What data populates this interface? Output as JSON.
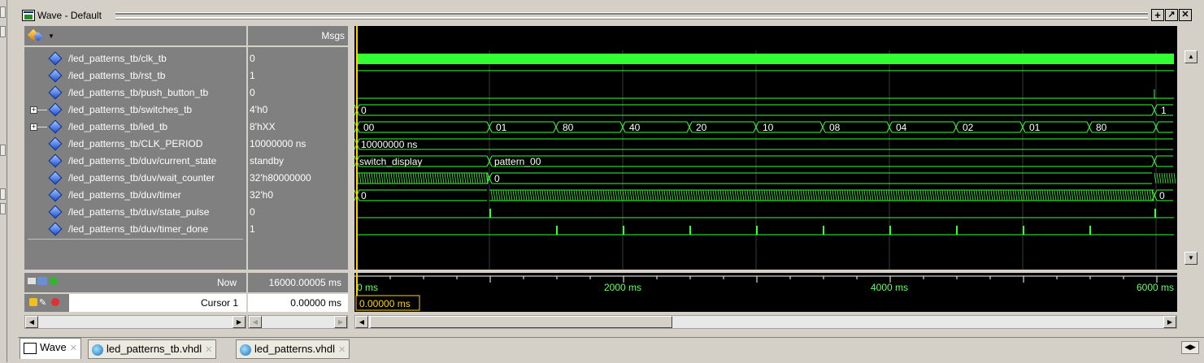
{
  "window": {
    "title": "Wave - Default",
    "buttons": [
      "+",
      "↗",
      "✕"
    ]
  },
  "header": {
    "msgs_label": "Msgs"
  },
  "signals": [
    {
      "name": "/led_patterns_tb/clk_tb",
      "value": "0",
      "expandable": false
    },
    {
      "name": "/led_patterns_tb/rst_tb",
      "value": "1",
      "expandable": false
    },
    {
      "name": "/led_patterns_tb/push_button_tb",
      "value": "0",
      "expandable": false
    },
    {
      "name": "/led_patterns_tb/switches_tb",
      "value": "4'h0",
      "expandable": true
    },
    {
      "name": "/led_patterns_tb/led_tb",
      "value": "8'hXX",
      "expandable": true
    },
    {
      "name": "/led_patterns_tb/CLK_PERIOD",
      "value": "10000000 ns",
      "expandable": false
    },
    {
      "name": "/led_patterns_tb/duv/current_state",
      "value": "standby",
      "expandable": false
    },
    {
      "name": "/led_patterns_tb/duv/wait_counter",
      "value": "32'h80000000",
      "expandable": false
    },
    {
      "name": "/led_patterns_tb/duv/timer",
      "value": "32'h0",
      "expandable": false
    },
    {
      "name": "/led_patterns_tb/duv/state_pulse",
      "value": "0",
      "expandable": false
    },
    {
      "name": "/led_patterns_tb/duv/timer_done",
      "value": "1",
      "expandable": false
    }
  ],
  "waves": {
    "switches_labels": [
      "0",
      "1"
    ],
    "led_labels": [
      "00",
      "01",
      "80",
      "40",
      "20",
      "10",
      "08",
      "04",
      "02",
      "01",
      "80"
    ],
    "clk_period_label": "10000000 ns",
    "current_state_labels": [
      "switch_display",
      "pattern_00"
    ],
    "wait_counter_label": "0",
    "timer_labels": [
      "0",
      "0"
    ]
  },
  "footer": {
    "now_label": "Now",
    "now_value": "16000.00005 ms",
    "cursor_label": "Cursor 1",
    "cursor_value": "0.00000 ms",
    "cursor_marker": "0.00000 ms",
    "time_axis": [
      "0 ms",
      "2000 ms",
      "4000 ms",
      "6000 ms"
    ]
  },
  "tabs": [
    {
      "label": "Wave",
      "active": true
    },
    {
      "label": "led_patterns_tb.vhdl",
      "active": false
    },
    {
      "label": "led_patterns.vhdl",
      "active": false
    }
  ],
  "colors": {
    "wave": "#33ff33",
    "background": "#000000",
    "cursor": "#ffd400",
    "grid": "#404040"
  }
}
